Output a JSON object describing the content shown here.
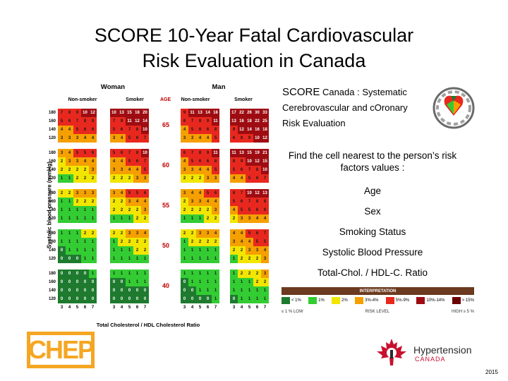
{
  "title": [
    "SCORE 10-Year Fatal Cardiovascular",
    "Risk Evaluation in Canada"
  ],
  "score_definition": {
    "score_word": "SCORE",
    "line1_rest": " Canada : Systematic",
    "line2": "Cerebrovascular and cOronary",
    "line3": "Risk Evaluation"
  },
  "instructions": {
    "find_text": "Find the cell nearest to the person’s risk factors values :",
    "factors": [
      "Age",
      "Sex",
      "Smoking Status",
      "Systolic Blood Pressure",
      "Total-Chol. / HDL-C. Ratio"
    ]
  },
  "chart": {
    "sex_headers": [
      "Woman",
      "Man"
    ],
    "smoking_headers": [
      "Non-smoker",
      "Smoker",
      "Non-smoker",
      "Smoker"
    ],
    "age_header": "AGE",
    "ages": [
      "65",
      "60",
      "55",
      "50",
      "40"
    ],
    "bp_labels": [
      "180",
      "160",
      "140",
      "120"
    ],
    "chol_labels": [
      "3",
      "4",
      "5",
      "6",
      "7"
    ],
    "y_axis_label": "Systolic blood pressure (mmHg)",
    "x_axis_label": "Total Cholesterol / HDL Cholesterol Ratio",
    "colors": {
      "dkgreen": "#1e7a2e",
      "green": "#33cc33",
      "yellow": "#f2e600",
      "orange": "#f5a000",
      "red": "#e8281e",
      "dkred": "#9e0c12"
    },
    "panels": [
      [
        [
          "7",
          "8",
          "9",
          "10",
          "12"
        ],
        [
          "5",
          "6",
          "7",
          "8",
          "9"
        ],
        [
          "4",
          "4",
          "5",
          "6",
          "6"
        ],
        [
          "3",
          "3",
          "3",
          "4",
          "4"
        ],
        [
          "10",
          "13",
          "15",
          "18",
          "20"
        ],
        [
          "7",
          "9",
          "11",
          "12",
          "14"
        ],
        [
          "5",
          "6",
          "7",
          "8",
          "10"
        ],
        [
          "3",
          "4",
          "5",
          "6",
          "7"
        ],
        [
          "9",
          "11",
          "13",
          "14",
          "18"
        ],
        [
          "6",
          "7",
          "8",
          "9",
          "11"
        ],
        [
          "4",
          "5",
          "6",
          "6",
          "8"
        ],
        [
          "3",
          "3",
          "4",
          "4",
          "5"
        ],
        [
          "17",
          "22",
          "26",
          "30",
          "33"
        ],
        [
          "13",
          "16",
          "18",
          "22",
          "25"
        ],
        [
          "9",
          "12",
          "14",
          "16",
          "18"
        ],
        [
          "6",
          "8",
          "9",
          "10",
          "12"
        ]
      ],
      [
        [
          "3",
          "4",
          "5",
          "5",
          "6"
        ],
        [
          "2",
          "3",
          "3",
          "4",
          "4"
        ],
        [
          "2",
          "2",
          "2",
          "2",
          "3"
        ],
        [
          "1",
          "1",
          "2",
          "2",
          "2"
        ],
        [
          "5",
          "6",
          "7",
          "8",
          "10"
        ],
        [
          "4",
          "4",
          "5",
          "6",
          "7"
        ],
        [
          "3",
          "3",
          "4",
          "4",
          "5"
        ],
        [
          "2",
          "2",
          "2",
          "3",
          "3"
        ],
        [
          "6",
          "7",
          "8",
          "9",
          "11"
        ],
        [
          "4",
          "5",
          "6",
          "6",
          "8"
        ],
        [
          "3",
          "3",
          "4",
          "4",
          "5"
        ],
        [
          "2",
          "2",
          "2",
          "3",
          "3"
        ],
        [
          "11",
          "13",
          "15",
          "19",
          "21"
        ],
        [
          "8",
          "9",
          "10",
          "12",
          "15"
        ],
        [
          "5",
          "6",
          "7",
          "8",
          "10"
        ],
        [
          "4",
          "4",
          "5",
          "6",
          "7"
        ]
      ],
      [
        [
          "2",
          "2",
          "3",
          "3",
          "3"
        ],
        [
          "1",
          "1",
          "2",
          "2",
          "2"
        ],
        [
          "1",
          "1",
          "1",
          "1",
          "1"
        ],
        [
          "1",
          "1",
          "1",
          "1",
          "1"
        ],
        [
          "3",
          "4",
          "5",
          "5",
          "6"
        ],
        [
          "2",
          "2",
          "3",
          "4",
          "4"
        ],
        [
          "2",
          "2",
          "2",
          "2",
          "3"
        ],
        [
          "1",
          "1",
          "1",
          "2",
          "2"
        ],
        [
          "3",
          "4",
          "4",
          "5",
          "6"
        ],
        [
          "2",
          "3",
          "3",
          "4",
          "4"
        ],
        [
          "2",
          "2",
          "2",
          "2",
          "3"
        ],
        [
          "1",
          "1",
          "1",
          "2",
          "2"
        ],
        [
          "6",
          "7",
          "10",
          "12",
          "13"
        ],
        [
          "5",
          "6",
          "7",
          "8",
          "8"
        ],
        [
          "4",
          "5",
          "5",
          "6",
          "6"
        ],
        [
          "2",
          "3",
          "3",
          "4",
          "4"
        ]
      ],
      [
        [
          "1",
          "1",
          "1",
          "2",
          "2"
        ],
        [
          "1",
          "1",
          "1",
          "1",
          "1"
        ],
        [
          "0",
          "1",
          "1",
          "1",
          "1"
        ],
        [
          "0",
          "0",
          "0",
          "1",
          "1"
        ],
        [
          "2",
          "2",
          "3",
          "3",
          "4"
        ],
        [
          "1",
          "2",
          "2",
          "2",
          "2"
        ],
        [
          "1",
          "1",
          "1",
          "2",
          "2"
        ],
        [
          "1",
          "1",
          "1",
          "1",
          "1"
        ],
        [
          "2",
          "2",
          "3",
          "3",
          "4"
        ],
        [
          "1",
          "2",
          "2",
          "2",
          "2"
        ],
        [
          "1",
          "1",
          "1",
          "1",
          "1"
        ],
        [
          "1",
          "1",
          "1",
          "1",
          "1"
        ],
        [
          "4",
          "4",
          "5",
          "6",
          "7"
        ],
        [
          "3",
          "4",
          "4",
          "5",
          "5"
        ],
        [
          "2",
          "2",
          "3",
          "3",
          "4"
        ],
        [
          "1",
          "2",
          "2",
          "2",
          "3"
        ]
      ],
      [
        [
          "0",
          "0",
          "0",
          "0",
          "1"
        ],
        [
          "0",
          "0",
          "0",
          "0",
          "0"
        ],
        [
          "0",
          "0",
          "0",
          "0",
          "0"
        ],
        [
          "0",
          "0",
          "0",
          "0",
          "0"
        ],
        [
          "1",
          "1",
          "1",
          "1",
          "1"
        ],
        [
          "0",
          "0",
          "1",
          "1",
          "1"
        ],
        [
          "0",
          "0",
          "0",
          "0",
          "0"
        ],
        [
          "0",
          "0",
          "0",
          "0",
          "0"
        ],
        [
          "1",
          "1",
          "1",
          "1",
          "1"
        ],
        [
          "0",
          "1",
          "1",
          "1",
          "1"
        ],
        [
          "0",
          "0",
          "1",
          "1",
          "1"
        ],
        [
          "0",
          "0",
          "0",
          "0",
          "1"
        ],
        [
          "1",
          "2",
          "2",
          "2",
          "3"
        ],
        [
          "1",
          "1",
          "1",
          "2",
          "2"
        ],
        [
          "1",
          "1",
          "1",
          "1",
          "1"
        ],
        [
          "0",
          "1",
          "1",
          "1",
          "1"
        ]
      ]
    ]
  },
  "legend": {
    "title": "INTERPRETATION",
    "items": [
      {
        "label": "< 1%",
        "color": "#1e7a2e"
      },
      {
        "label": "1%",
        "color": "#33cc33"
      },
      {
        "label": "2%",
        "color": "#f2e600"
      },
      {
        "label": "3%-4%",
        "color": "#f5a000"
      },
      {
        "label": "5%-9%",
        "color": "#e8281e"
      },
      {
        "label": "10%-14%",
        "color": "#9e0c12"
      },
      {
        "label": "> 15%",
        "color": "#6b0000"
      }
    ],
    "low_label": "≤ 1 % LOW",
    "risk_label": "RISK LEVEL",
    "high_label": "HIGH ≥ 5 %"
  },
  "logos": {
    "chep": "CHEP",
    "htn_name": "Hypertension",
    "htn_country": "CANADA"
  },
  "year": "2015"
}
